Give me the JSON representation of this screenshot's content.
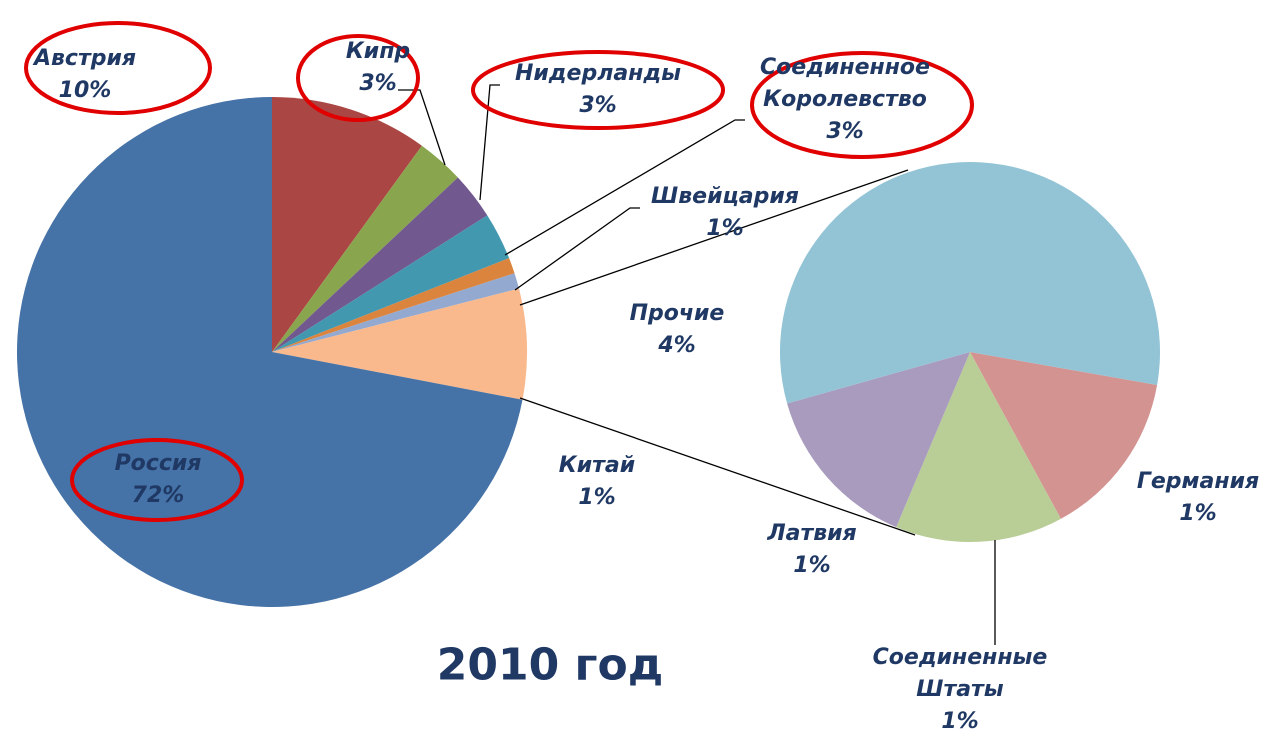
{
  "chart_data": [
    {
      "type": "pie",
      "title": "2010 год",
      "categories": [
        "Австрия",
        "Кипр",
        "Нидерланды",
        "Соединенное Королевство",
        "Швейцария",
        "Китай",
        null,
        "Россия"
      ],
      "values": [
        10,
        3,
        3,
        3,
        1,
        1,
        7,
        72
      ],
      "value_labels": [
        "10%",
        "3%",
        "3%",
        "3%",
        "1%",
        "1%",
        null,
        "72%"
      ],
      "colors": [
        "#aa4643",
        "#89a54e",
        "#71588f",
        "#4198af",
        "#db843d",
        "#93a9cf",
        "#f9b98c",
        "#4572a7"
      ]
    },
    {
      "type": "pie",
      "categories": [
        "Германия",
        "Соединенные Штаты",
        "Латвия",
        "Прочие"
      ],
      "values": [
        1,
        1,
        1,
        4
      ],
      "value_labels": [
        "1%",
        "1%",
        "1%",
        "4%"
      ],
      "colors": [
        "#d39391",
        "#b9cd96",
        "#a99bbd",
        "#93c4d6"
      ]
    }
  ]
}
